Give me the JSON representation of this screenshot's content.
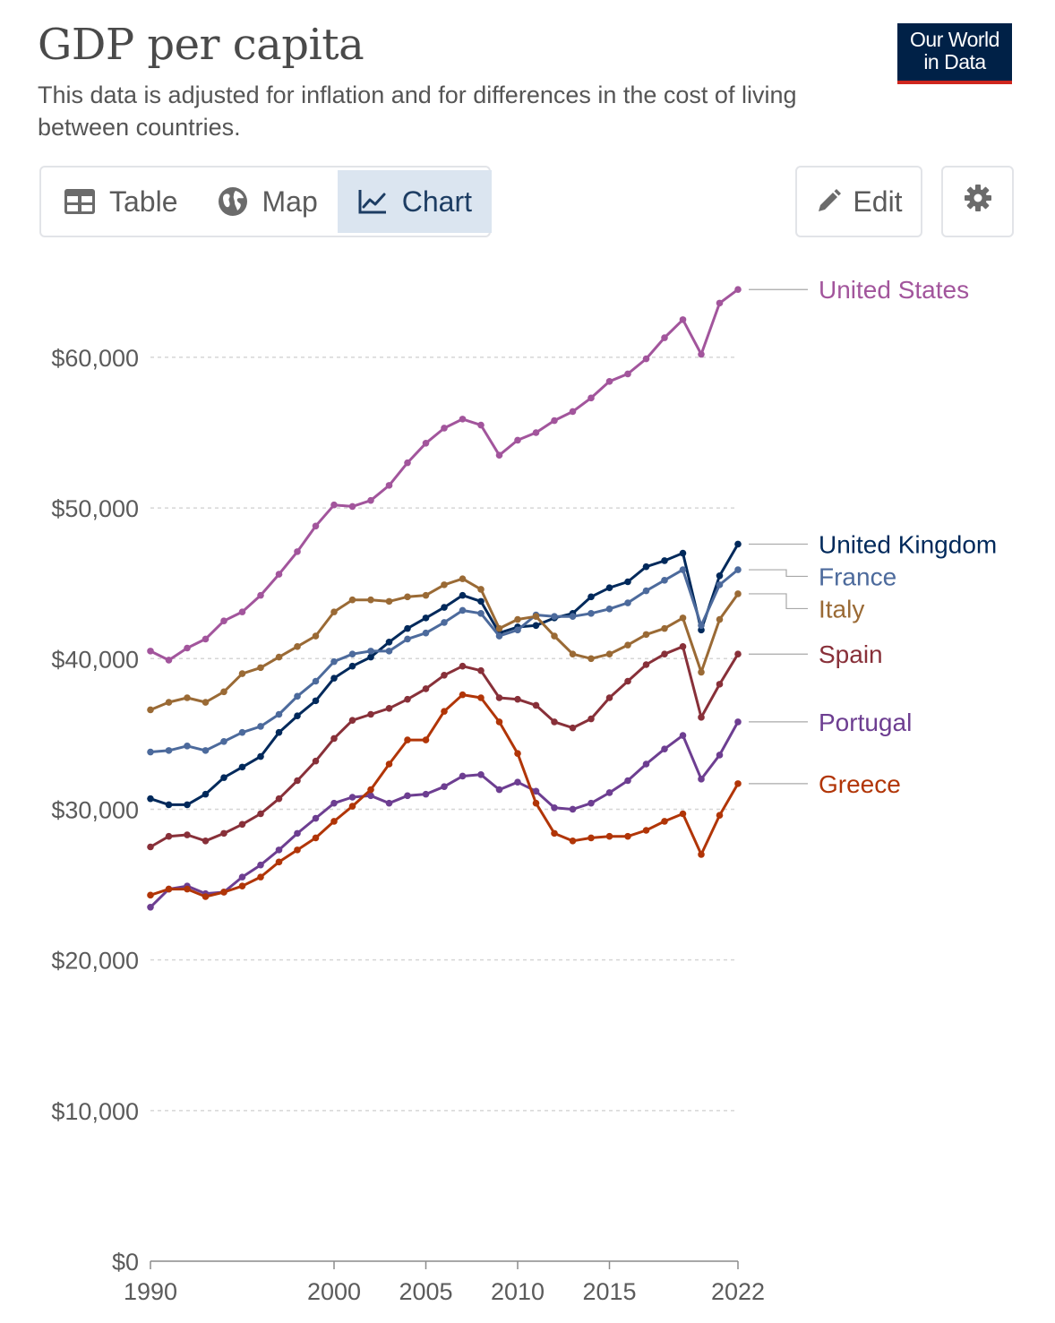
{
  "header": {
    "title": "GDP per capita",
    "subtitle": "This data is adjusted for inflation and for differences in the cost of living between countries.",
    "logo_line1": "Our World",
    "logo_line2": "in Data"
  },
  "tabs": [
    {
      "label": "Table",
      "icon": "table-icon",
      "active": false
    },
    {
      "label": "Map",
      "icon": "globe-icon",
      "active": false
    },
    {
      "label": "Chart",
      "icon": "line-chart-icon",
      "active": true
    }
  ],
  "toolbar": {
    "edit_label": "Edit",
    "edit_icon": "pencil-icon",
    "settings_icon": "gear-icon"
  },
  "colors": {
    "accent": "#1d3d63",
    "logo_bg": "#002147",
    "logo_bar": "#ce261e"
  },
  "chart_data": {
    "type": "line",
    "title": "GDP per capita",
    "ylim": [
      0,
      66000
    ],
    "xlim": [
      1990,
      2022
    ],
    "y_ticks": [
      0,
      10000,
      20000,
      30000,
      40000,
      50000,
      60000
    ],
    "y_tick_labels": [
      "$0",
      "$10,000",
      "$20,000",
      "$30,000",
      "$40,000",
      "$50,000",
      "$60,000"
    ],
    "x_ticks": [
      1990,
      2000,
      2005,
      2010,
      2015,
      2022
    ],
    "x_tick_labels": [
      "1990",
      "2000",
      "2005",
      "2010",
      "2015",
      "2022"
    ],
    "grid": "horizontal dashed",
    "legend": "right, labels at line ends",
    "x": [
      1990,
      1991,
      1992,
      1993,
      1994,
      1995,
      1996,
      1997,
      1998,
      1999,
      2000,
      2001,
      2002,
      2003,
      2004,
      2005,
      2006,
      2007,
      2008,
      2009,
      2010,
      2011,
      2012,
      2013,
      2014,
      2015,
      2016,
      2017,
      2018,
      2019,
      2020,
      2021,
      2022
    ],
    "series": [
      {
        "name": "United States",
        "color": "#a2559c",
        "values": [
          40500,
          39900,
          40700,
          41300,
          42500,
          43100,
          44200,
          45600,
          47100,
          48800,
          50200,
          50100,
          50500,
          51500,
          53000,
          54300,
          55300,
          55900,
          55500,
          53500,
          54500,
          55000,
          55800,
          56400,
          57300,
          58400,
          58900,
          59900,
          61300,
          62500,
          60200,
          63600,
          64500
        ]
      },
      {
        "name": "United Kingdom",
        "color": "#00295b",
        "values": [
          30700,
          30300,
          30300,
          31000,
          32100,
          32800,
          33500,
          35100,
          36200,
          37200,
          38700,
          39500,
          40100,
          41100,
          42000,
          42700,
          43400,
          44200,
          43800,
          41700,
          42100,
          42200,
          42700,
          43000,
          44100,
          44700,
          45100,
          46100,
          46500,
          47000,
          41900,
          45500,
          47600
        ]
      },
      {
        "name": "France",
        "color": "#4c6a9c",
        "values": [
          33800,
          33900,
          34200,
          33900,
          34500,
          35100,
          35500,
          36300,
          37500,
          38500,
          39800,
          40300,
          40500,
          40500,
          41300,
          41700,
          42400,
          43200,
          43000,
          41500,
          41900,
          42900,
          42800,
          42800,
          43000,
          43300,
          43700,
          44500,
          45200,
          45900,
          42200,
          44900,
          45900
        ]
      },
      {
        "name": "Italy",
        "color": "#9a6a35",
        "values": [
          36600,
          37100,
          37400,
          37100,
          37800,
          39000,
          39400,
          40100,
          40800,
          41500,
          43100,
          43900,
          43900,
          43800,
          44100,
          44200,
          44900,
          45300,
          44600,
          42000,
          42600,
          42800,
          41500,
          40300,
          40000,
          40300,
          40900,
          41600,
          42000,
          42700,
          39100,
          42600,
          44300
        ]
      },
      {
        "name": "Spain",
        "color": "#883039",
        "values": [
          27500,
          28200,
          28300,
          27900,
          28400,
          29000,
          29700,
          30700,
          31900,
          33200,
          34700,
          35900,
          36300,
          36700,
          37300,
          38000,
          38900,
          39500,
          39200,
          37400,
          37300,
          36900,
          35800,
          35400,
          36000,
          37400,
          38500,
          39600,
          40300,
          40800,
          36100,
          38300,
          40300
        ]
      },
      {
        "name": "Portugal",
        "color": "#6d3e91",
        "values": [
          23500,
          24700,
          24900,
          24400,
          24500,
          25500,
          26300,
          27300,
          28400,
          29400,
          30400,
          30800,
          30900,
          30400,
          30900,
          31000,
          31500,
          32200,
          32300,
          31300,
          31800,
          31200,
          30100,
          30000,
          30400,
          31100,
          31900,
          33000,
          34000,
          34900,
          32000,
          33600,
          35800
        ]
      },
      {
        "name": "Greece",
        "color": "#b13507",
        "values": [
          24300,
          24700,
          24700,
          24200,
          24500,
          24900,
          25500,
          26500,
          27300,
          28100,
          29200,
          30200,
          31300,
          33000,
          34600,
          34600,
          36500,
          37600,
          37400,
          35800,
          33700,
          30400,
          28400,
          27900,
          28100,
          28200,
          28200,
          28600,
          29200,
          29700,
          27000,
          29600,
          31700
        ]
      }
    ]
  }
}
